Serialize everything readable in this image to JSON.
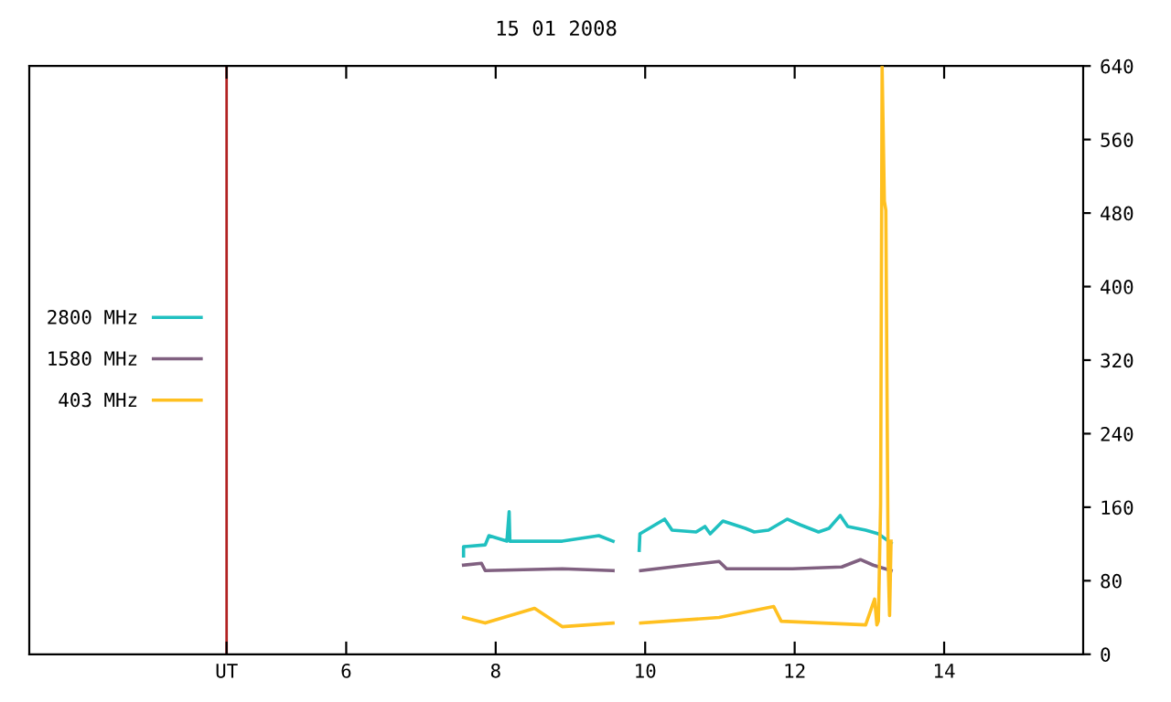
{
  "chart_data": {
    "type": "line",
    "title": "15 01 2008",
    "xlim": [
      1.76,
      15.86
    ],
    "xticks": [
      {
        "value": 4.4,
        "label": "UT"
      },
      6,
      8,
      10,
      12,
      14
    ],
    "ylim": [
      0,
      640
    ],
    "yticks": [
      0,
      80,
      160,
      240,
      320,
      400,
      480,
      560,
      640
    ],
    "grid": false,
    "legend": "left",
    "line_style": "solid",
    "marker": "none",
    "ref_lines": [
      {
        "axis": "x",
        "value": 4.4,
        "label": null,
        "color": "#b22222"
      }
    ],
    "series": [
      {
        "name": "2800 MHz",
        "color": "#20c0c0",
        "x": [
          7.57,
          7.57,
          7.86,
          7.91,
          8.15,
          8.18,
          8.19,
          8.89,
          9.38,
          9.57,
          9.75,
          9.92,
          9.93,
          10.26,
          10.36,
          10.68,
          10.8,
          10.87,
          11.04,
          11.34,
          11.46,
          11.65,
          11.9,
          12.07,
          12.32,
          12.46,
          12.61,
          12.71,
          12.95,
          13.12,
          13.29
        ],
        "values": [
          107,
          117,
          119,
          129,
          123,
          155,
          123,
          123,
          129,
          123,
          null,
          113,
          131,
          147,
          135,
          133,
          139,
          131,
          145,
          137,
          133,
          135,
          147,
          141,
          133,
          137,
          151,
          139,
          135,
          131,
          121
        ]
      },
      {
        "name": "1580 MHz",
        "color": "#806080",
        "x": [
          7.57,
          7.81,
          7.86,
          8.89,
          9.57,
          9.75,
          9.94,
          10.99,
          11.09,
          11.97,
          12.63,
          12.88,
          13.05,
          13.29
        ],
        "values": [
          97,
          99,
          91,
          93,
          91,
          null,
          91,
          101,
          93,
          93,
          95,
          103,
          97,
          91
        ]
      },
      {
        "name": "403 MHz",
        "color": "#ffc020",
        "x": [
          7.57,
          7.86,
          8.52,
          8.89,
          9.57,
          9.75,
          9.94,
          10.99,
          11.72,
          11.82,
          12.95,
          13.07,
          13.1,
          13.12,
          13.15,
          13.17,
          13.2,
          13.22,
          13.25,
          13.27,
          13.29
        ],
        "values": [
          40,
          34,
          50,
          30,
          34,
          null,
          34,
          40,
          52,
          36,
          32,
          60,
          32,
          36,
          163,
          640,
          493,
          483,
          103,
          42,
          123
        ]
      }
    ]
  }
}
